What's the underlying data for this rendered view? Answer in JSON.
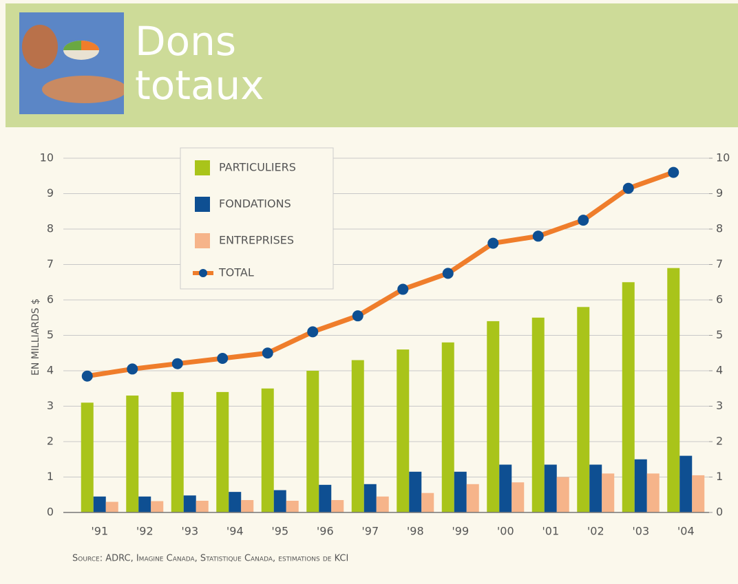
{
  "chart_data": {
    "type": "bar",
    "title": "Dons totaux",
    "y_label": "EN MILLIARDS $",
    "source": "Source: ADRC, Imagine Canada, Statistique Canada, estimations de KCI",
    "categories": [
      "'91",
      "'92",
      "'93",
      "'94",
      "'95",
      "'96",
      "'97",
      "'98",
      "'99",
      "'00",
      "'01",
      "'02",
      "'03",
      "'04"
    ],
    "series": [
      {
        "name": "PARTICULIERS",
        "color": "#a9c41a",
        "values": [
          3.1,
          3.3,
          3.4,
          3.4,
          3.5,
          4.0,
          4.3,
          4.6,
          4.8,
          5.4,
          5.5,
          5.8,
          6.5,
          6.9
        ]
      },
      {
        "name": "FONDATIONS",
        "color": "#0e4f92",
        "values": [
          0.45,
          0.45,
          0.48,
          0.58,
          0.63,
          0.78,
          0.8,
          1.15,
          1.15,
          1.35,
          1.35,
          1.35,
          1.5,
          1.6
        ]
      },
      {
        "name": "ENTREPRISES",
        "color": "#f6b48a",
        "values": [
          0.3,
          0.32,
          0.33,
          0.35,
          0.33,
          0.35,
          0.45,
          0.55,
          0.8,
          0.85,
          1.0,
          1.1,
          1.1,
          1.05
        ]
      },
      {
        "name": "TOTAL",
        "type": "line",
        "color": "#ef7d2b",
        "marker_color": "#0e4f92",
        "values": [
          3.85,
          4.05,
          4.2,
          4.35,
          4.5,
          5.1,
          5.55,
          6.3,
          6.75,
          7.6,
          7.8,
          8.25,
          9.15,
          9.6
        ]
      }
    ],
    "ylim": [
      0,
      10
    ],
    "yticks": [
      0,
      1,
      2,
      3,
      4,
      5,
      6,
      7,
      8,
      9,
      10
    ],
    "y2lim": [
      0,
      10
    ],
    "y2ticks": [
      0,
      1,
      2,
      3,
      4,
      5,
      6,
      7,
      8,
      9,
      10
    ],
    "grid": true
  }
}
